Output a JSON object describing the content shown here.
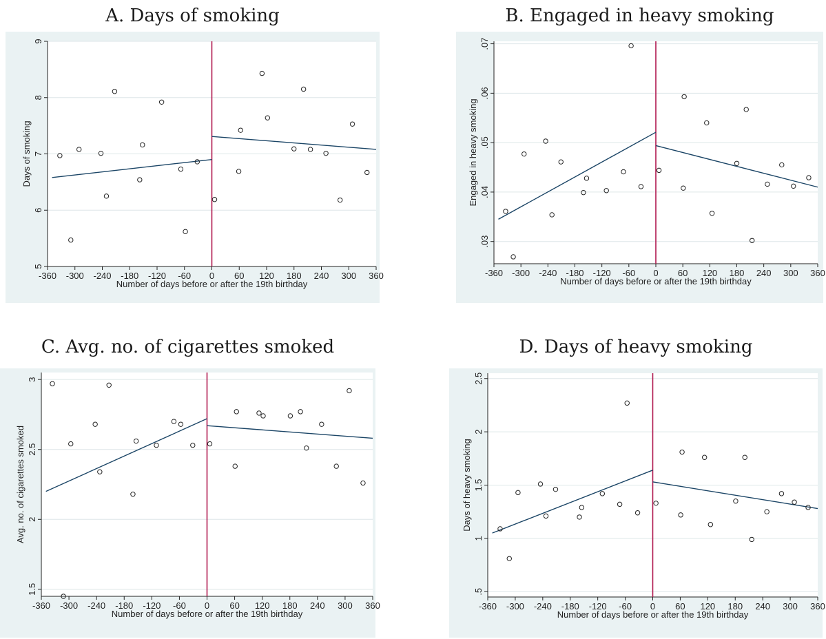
{
  "colors": {
    "panel_bg": "#eaf2f3",
    "plot_bg": "#ffffff",
    "grid": "#dde6e8",
    "cutoff": "#b0184f",
    "fit": "#1b4566",
    "marker": "#222222"
  },
  "chart_data": [
    {
      "type": "scatter",
      "title": "A. Days of smoking",
      "xlabel": "Number of days before or after the 19th birthday",
      "ylabel": "Days of smoking",
      "xlim": [
        -360,
        360
      ],
      "xticks": [
        "-360",
        "-300",
        "-240",
        "-180",
        "-120",
        "-60",
        "0",
        "60",
        "120",
        "180",
        "240",
        "300",
        "360"
      ],
      "ylim": [
        5,
        9
      ],
      "yticks": [
        {
          "v": 5,
          "label": "5"
        },
        {
          "v": 6,
          "label": "6"
        },
        {
          "v": 7,
          "label": "7"
        },
        {
          "v": 8,
          "label": "8"
        },
        {
          "v": 9,
          "label": "9"
        }
      ],
      "grid": true,
      "cutoff": 0,
      "points": [
        [
          -333,
          6.97
        ],
        [
          -309,
          5.47
        ],
        [
          -291,
          7.08
        ],
        [
          -243,
          7.01
        ],
        [
          -231,
          6.25
        ],
        [
          -213,
          8.11
        ],
        [
          -158,
          6.54
        ],
        [
          -152,
          7.16
        ],
        [
          -110,
          7.92
        ],
        [
          -68,
          6.73
        ],
        [
          -58,
          5.62
        ],
        [
          -32,
          6.86
        ],
        [
          6,
          6.19
        ],
        [
          63,
          7.42
        ],
        [
          59,
          6.69
        ],
        [
          110,
          8.43
        ],
        [
          122,
          7.64
        ],
        [
          180,
          7.09
        ],
        [
          201,
          8.15
        ],
        [
          216,
          7.08
        ],
        [
          250,
          7.01
        ],
        [
          281,
          6.18
        ],
        [
          308,
          7.53
        ],
        [
          340,
          6.67
        ]
      ],
      "fit_lines": [
        [
          [
            -350,
            6.58
          ],
          [
            0,
            6.9
          ]
        ],
        [
          [
            0,
            7.31
          ],
          [
            360,
            7.08
          ]
        ]
      ]
    },
    {
      "type": "scatter",
      "title": "B. Engaged in heavy smoking",
      "xlabel": "Number of days before or after the 19th birthday",
      "ylabel": "Engaged in heavy smoking",
      "xlim": [
        -360,
        360
      ],
      "xticks": [
        "-360",
        "-300",
        "-240",
        "-180",
        "-120",
        "-60",
        "0",
        "60",
        "120",
        "180",
        "240",
        "300",
        "360"
      ],
      "ylim": [
        0.0255,
        0.0705
      ],
      "yticks": [
        {
          "v": 0.03,
          "label": ".03"
        },
        {
          "v": 0.04,
          "label": ".04"
        },
        {
          "v": 0.05,
          "label": ".05"
        },
        {
          "v": 0.06,
          "label": ".06"
        },
        {
          "v": 0.07,
          "label": ".07"
        }
      ],
      "grid": true,
      "cutoff": 0,
      "points": [
        [
          -334,
          0.0361
        ],
        [
          -317,
          0.0269
        ],
        [
          -293,
          0.0477
        ],
        [
          -245,
          0.0503
        ],
        [
          -231,
          0.0354
        ],
        [
          -211,
          0.0461
        ],
        [
          -161,
          0.0399
        ],
        [
          -154,
          0.0428
        ],
        [
          -110,
          0.0403
        ],
        [
          -72,
          0.0441
        ],
        [
          -55,
          0.0696
        ],
        [
          -33,
          0.0411
        ],
        [
          7,
          0.0444
        ],
        [
          61,
          0.0408
        ],
        [
          63,
          0.0593
        ],
        [
          113,
          0.054
        ],
        [
          125,
          0.0357
        ],
        [
          180,
          0.0458
        ],
        [
          201,
          0.0567
        ],
        [
          214,
          0.0302
        ],
        [
          248,
          0.0416
        ],
        [
          280,
          0.0455
        ],
        [
          306,
          0.0412
        ],
        [
          340,
          0.0429
        ]
      ],
      "fit_lines": [
        [
          [
            -350,
            0.0345
          ],
          [
            0,
            0.0521
          ]
        ],
        [
          [
            0,
            0.0494
          ],
          [
            360,
            0.041
          ]
        ]
      ]
    },
    {
      "type": "scatter",
      "title": "C. Avg. no. of cigarettes smoked",
      "xlabel": "Number of days before or after the 19th birthday",
      "ylabel": "Avg. no. of cigarettes smoked",
      "xlim": [
        -360,
        360
      ],
      "xticks": [
        "-360",
        "-300",
        "-240",
        "-180",
        "-120",
        "-60",
        "0",
        "60",
        "120",
        "180",
        "240",
        "300",
        "360"
      ],
      "ylim": [
        1.45,
        3.05
      ],
      "yticks": [
        {
          "v": 1.5,
          "label": "1.5"
        },
        {
          "v": 2,
          "label": "2"
        },
        {
          "v": 2.5,
          "label": "2.5"
        },
        {
          "v": 3,
          "label": "3"
        }
      ],
      "grid": true,
      "cutoff": 0,
      "points": [
        [
          -336,
          2.97
        ],
        [
          -312,
          1.45
        ],
        [
          -296,
          2.54
        ],
        [
          -243,
          2.68
        ],
        [
          -233,
          2.34
        ],
        [
          -213,
          2.96
        ],
        [
          -161,
          2.18
        ],
        [
          -154,
          2.56
        ],
        [
          -110,
          2.53
        ],
        [
          -72,
          2.7
        ],
        [
          -57,
          2.68
        ],
        [
          -31,
          2.53
        ],
        [
          6,
          2.54
        ],
        [
          61,
          2.38
        ],
        [
          64,
          2.77
        ],
        [
          113,
          2.76
        ],
        [
          122,
          2.74
        ],
        [
          181,
          2.74
        ],
        [
          203,
          2.77
        ],
        [
          216,
          2.51
        ],
        [
          249,
          2.68
        ],
        [
          281,
          2.38
        ],
        [
          309,
          2.92
        ],
        [
          339,
          2.26
        ]
      ],
      "fit_lines": [
        [
          [
            -350,
            2.2
          ],
          [
            0,
            2.72
          ]
        ],
        [
          [
            0,
            2.67
          ],
          [
            360,
            2.58
          ]
        ]
      ]
    },
    {
      "type": "scatter",
      "title": "D. Days of heavy smoking",
      "xlabel": "Number of days before or after the 19th birthday",
      "ylabel": "Days of heavy smoking",
      "xlim": [
        -360,
        360
      ],
      "xticks": [
        "-360",
        "-300",
        "-240",
        "-180",
        "-120",
        "-60",
        "0",
        "60",
        "120",
        "180",
        "240",
        "300",
        "360"
      ],
      "ylim": [
        0.45,
        2.55
      ],
      "yticks": [
        {
          "v": 0.5,
          "label": ".5"
        },
        {
          "v": 1,
          "label": "1"
        },
        {
          "v": 1.5,
          "label": "1.5"
        },
        {
          "v": 2,
          "label": "2"
        },
        {
          "v": 2.5,
          "label": "2.5"
        }
      ],
      "grid": true,
      "cutoff": 0,
      "points": [
        [
          -333,
          1.09
        ],
        [
          -313,
          0.81
        ],
        [
          -294,
          1.43
        ],
        [
          -245,
          1.51
        ],
        [
          -233,
          1.21
        ],
        [
          -212,
          1.46
        ],
        [
          -160,
          1.2
        ],
        [
          -155,
          1.29
        ],
        [
          -110,
          1.42
        ],
        [
          -72,
          1.32
        ],
        [
          -56,
          2.27
        ],
        [
          -33,
          1.24
        ],
        [
          7,
          1.33
        ],
        [
          61,
          1.22
        ],
        [
          64,
          1.81
        ],
        [
          113,
          1.76
        ],
        [
          126,
          1.13
        ],
        [
          181,
          1.35
        ],
        [
          201,
          1.76
        ],
        [
          216,
          0.99
        ],
        [
          249,
          1.25
        ],
        [
          281,
          1.42
        ],
        [
          309,
          1.34
        ],
        [
          339,
          1.29
        ]
      ],
      "fit_lines": [
        [
          [
            -350,
            1.05
          ],
          [
            0,
            1.64
          ]
        ],
        [
          [
            0,
            1.53
          ],
          [
            360,
            1.28
          ]
        ]
      ]
    }
  ]
}
